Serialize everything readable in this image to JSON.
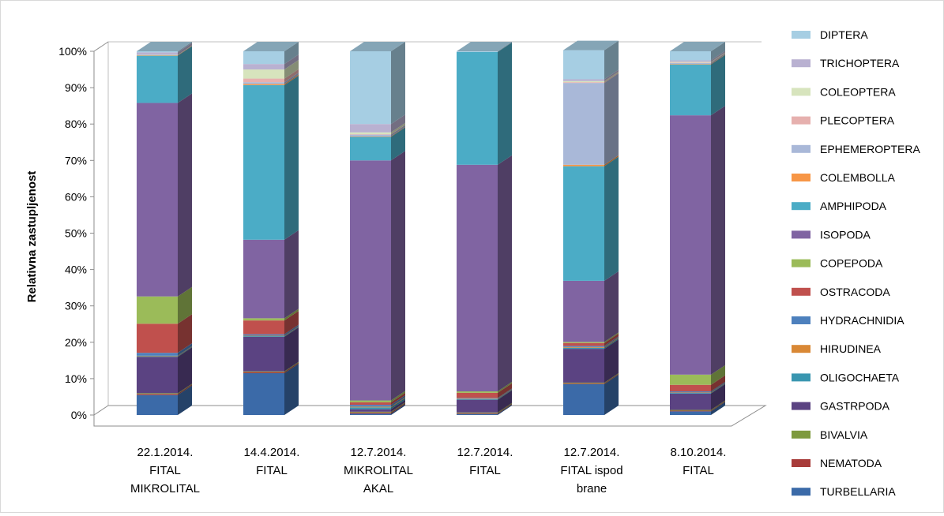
{
  "chart_data": {
    "type": "bar",
    "stacked": true,
    "percent": true,
    "three_d": true,
    "ylabel": "Relativna zastupljenost",
    "xlabel": "",
    "ylim": [
      0,
      100
    ],
    "yticks": [
      "0%",
      "10%",
      "20%",
      "30%",
      "40%",
      "50%",
      "60%",
      "70%",
      "80%",
      "90%",
      "100%"
    ],
    "legend_position": "right",
    "grid": false,
    "categories": [
      [
        "22.1.2014.",
        "FITAL",
        "MIKROLITAL"
      ],
      [
        "14.4.2014.",
        "FITAL"
      ],
      [
        "12.7.2014.",
        "MIKROLITAL",
        "AKAL"
      ],
      [
        "12.7.2014.",
        "FITAL"
      ],
      [
        "12.7.2014.",
        "FITAL ispod",
        "brane"
      ],
      [
        "8.10.2014.",
        "FITAL"
      ]
    ],
    "series": [
      {
        "name": "TURBELLARIA",
        "color": "#3b6aa8",
        "values": [
          5.5,
          11.5,
          0.4,
          0.3,
          8.5,
          1.0
        ]
      },
      {
        "name": "NEMATODA",
        "color": "#a83c3a",
        "values": [
          0.3,
          0.3,
          0.3,
          0.2,
          0.2,
          0.2
        ]
      },
      {
        "name": "BIVALVIA",
        "color": "#7e9a3e",
        "values": [
          0.2,
          0.2,
          0.2,
          0.2,
          0.2,
          0.2
        ]
      },
      {
        "name": "GASTRPODA",
        "color": "#5b4382",
        "values": [
          10.0,
          9.5,
          0.7,
          3.5,
          9.3,
          4.5
        ]
      },
      {
        "name": "OLIGOCHAETA",
        "color": "#3996b0",
        "values": [
          0.2,
          0.2,
          0.5,
          0.2,
          0.3,
          0.2
        ]
      },
      {
        "name": "HIRUDINEA",
        "color": "#d98835",
        "values": [
          0.1,
          0.1,
          0.2,
          0.1,
          0.2,
          0.1
        ]
      },
      {
        "name": "HYDRACHNIDIA",
        "color": "#4d80bd",
        "values": [
          0.8,
          0.4,
          0.5,
          0.2,
          0.3,
          0.3
        ]
      },
      {
        "name": "OSTRACODA",
        "color": "#c0504d",
        "values": [
          8.0,
          3.8,
          0.7,
          1.4,
          0.8,
          1.8
        ]
      },
      {
        "name": "COPEPODA",
        "color": "#9bbb59",
        "values": [
          7.5,
          0.6,
          0.5,
          0.4,
          0.3,
          2.8
        ]
      },
      {
        "name": "ISOPODA",
        "color": "#8064a2",
        "values": [
          53.2,
          21.6,
          66.0,
          62.3,
          16.8,
          71.3
        ]
      },
      {
        "name": "AMPHIPODA",
        "color": "#4bacc6",
        "values": [
          13.0,
          42.5,
          6.5,
          31.0,
          31.5,
          14.0
        ]
      },
      {
        "name": "COLEMBOLLA",
        "color": "#f79646",
        "values": [
          0.1,
          0.3,
          0.1,
          0.0,
          0.4,
          0.1
        ]
      },
      {
        "name": "EPHEMEROPTERA",
        "color": "#a9b8d8",
        "values": [
          0.0,
          0.5,
          0.5,
          0.0,
          22.5,
          0.3
        ]
      },
      {
        "name": "PLECOPTERA",
        "color": "#e6b0ae",
        "values": [
          0.0,
          1.0,
          0.1,
          0.0,
          0.2,
          0.1
        ]
      },
      {
        "name": "COLEOPTERA",
        "color": "#d7e4bd",
        "values": [
          0.1,
          2.5,
          0.5,
          0.0,
          0.3,
          0.2
        ]
      },
      {
        "name": "TRICHOPTERA",
        "color": "#b9b1d1",
        "values": [
          0.7,
          1.5,
          2.3,
          0.0,
          0.5,
          0.4
        ]
      },
      {
        "name": "DIPTERA",
        "color": "#a6cee3",
        "values": [
          0.3,
          3.5,
          20.0,
          0.2,
          8.0,
          2.5
        ]
      }
    ]
  }
}
